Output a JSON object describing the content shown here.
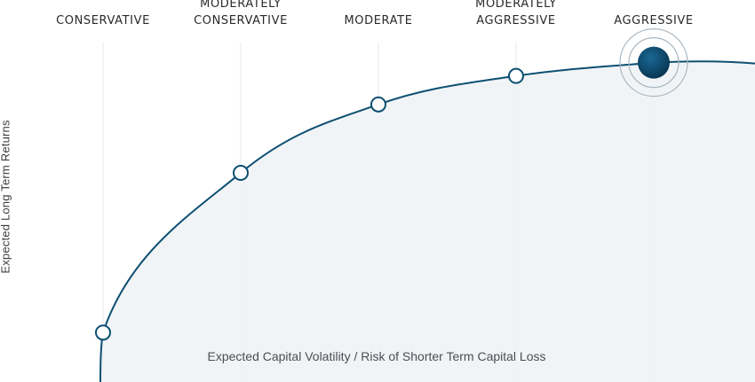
{
  "chart_data": {
    "type": "line",
    "categories": [
      "CONSERVATIVE",
      "MODERATELY CONSERVATIVE",
      "MODERATE",
      "MODERATELY AGGRESSIVE",
      "AGGRESSIVE"
    ],
    "values": [
      1.3,
      5.5,
      7.3,
      8.05,
      8.4
    ],
    "selected_category": "AGGRESSIVE",
    "xlabel": "Expected Capital Volatility / Risk of Shorter Term Capital Loss",
    "ylabel": "Expected Long Term Returns",
    "ylim": [
      0,
      10
    ],
    "grid": true,
    "colors": {
      "curve": "#0d4f72",
      "marker_fill": "#ffffff",
      "selected_fill": "#0b4f78",
      "area_fill": "#eef2f5",
      "gridline": "#e6e9ec"
    }
  }
}
